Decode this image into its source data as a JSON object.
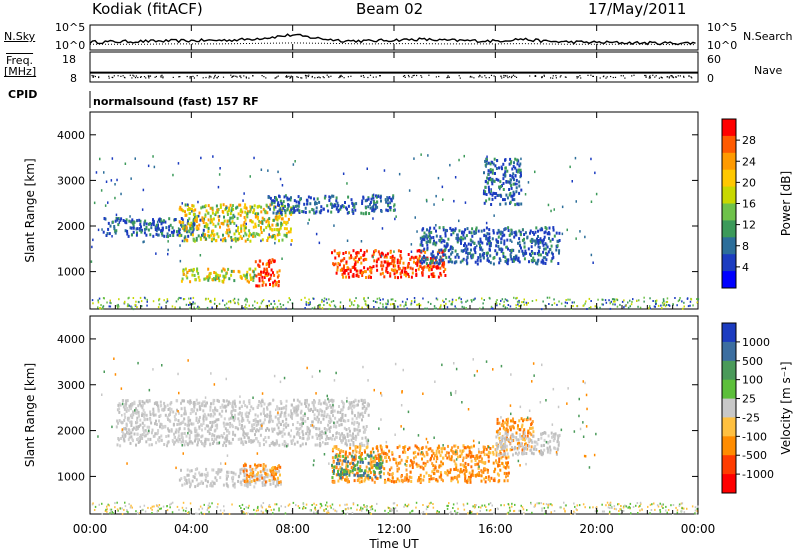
{
  "header": {
    "station": "Kodiak (fitACF)",
    "beam": "Beam 02",
    "date": "17/May/2011"
  },
  "side_labels": {
    "nsky": "N.Sky",
    "freq_line1": "Freq.",
    "freq_line2": "[MHz]",
    "cpid": "CPID",
    "nsearch": "N.Search",
    "nave": "Nave"
  },
  "mode_text": "normalsound (fast) 157 RF",
  "chart_data": [
    {
      "type": "line",
      "title": "",
      "left_ticks": [
        "10^5",
        "10^0"
      ],
      "right_ticks": [
        "10^5",
        "10^0"
      ],
      "series": [
        {
          "name": "N.Sky",
          "values": [
            1.3,
            1.4,
            1.5,
            1.6,
            1.7,
            1.8,
            2.0,
            2.6,
            3.4,
            2.4,
            1.7,
            1.6,
            1.9,
            2.1,
            1.8,
            1.7,
            1.6,
            2.2,
            1.5,
            1.3,
            1.2,
            1.1,
            1.0,
            1.0,
            1.0
          ]
        },
        {
          "name": "N.Search",
          "values": [
            1.1,
            1.1,
            1.1,
            1.2,
            1.2,
            1.2,
            1.3,
            1.4,
            1.5,
            1.4,
            1.3,
            1.2,
            1.3,
            1.3,
            1.2,
            1.2,
            1.2,
            1.3,
            1.2,
            1.1,
            1.1,
            1.1,
            1.1,
            1.0,
            1.0
          ]
        }
      ]
    },
    {
      "type": "scatter",
      "title": "",
      "left_ticks": [
        "18",
        "8"
      ],
      "right_ticks": [
        "60",
        "0"
      ],
      "series": [
        {
          "name": "Freq",
          "values": [
            11.0
          ]
        },
        {
          "name": "Nave",
          "values": [
            24
          ]
        }
      ]
    },
    {
      "type": "heatmap",
      "title": "",
      "ylabel": "Slant Range [km]",
      "ylim": [
        180,
        4500
      ],
      "y_ticks": [
        "1000",
        "2000",
        "3000",
        "4000"
      ],
      "colorbar_label": "Power [dB]",
      "colorbar_ticks": [
        "28",
        "24",
        "20",
        "16",
        "12",
        "8",
        "4"
      ],
      "colorbar_colors": [
        "#ff0000",
        "#ff5a00",
        "#ff9a00",
        "#ffc800",
        "#c8d800",
        "#6ec24a",
        "#3c9a5a",
        "#2c6e9a",
        "#1c3cc0",
        "#0000ff"
      ],
      "regions": [
        {
          "t": [
            0.5,
            4.5
          ],
          "r": [
            1800,
            2200
          ],
          "level": "low"
        },
        {
          "t": [
            3.5,
            8.0
          ],
          "r": [
            1700,
            2500
          ],
          "level": "mid"
        },
        {
          "t": [
            7.0,
            12.0
          ],
          "r": [
            2300,
            2700
          ],
          "level": "low"
        },
        {
          "t": [
            3.5,
            6.5
          ],
          "r": [
            800,
            1100
          ],
          "level": "mid"
        },
        {
          "t": [
            6.5,
            7.5
          ],
          "r": [
            700,
            1300
          ],
          "level": "high"
        },
        {
          "t": [
            9.5,
            14.0
          ],
          "r": [
            900,
            1500
          ],
          "level": "high"
        },
        {
          "t": [
            13.0,
            18.5
          ],
          "r": [
            1200,
            2000
          ],
          "level": "low"
        },
        {
          "t": [
            15.5,
            17.0
          ],
          "r": [
            2500,
            3500
          ],
          "level": "low"
        }
      ]
    },
    {
      "type": "heatmap",
      "title": "",
      "ylabel": "Slant Range [km]",
      "ylim": [
        180,
        4500
      ],
      "y_ticks": [
        "1000",
        "2000",
        "3000",
        "4000"
      ],
      "colorbar_label": "Velocity [m s⁻¹]",
      "colorbar_ticks": [
        "1000",
        "500",
        "100",
        "25",
        "-25",
        "-100",
        "-500",
        "-1000"
      ],
      "colorbar_colors": [
        "#1c3cc0",
        "#3c6ea0",
        "#4a9a5a",
        "#5cbf3a",
        "#c8c8c8",
        "#ffc040",
        "#ff8c00",
        "#ff3c00",
        "#ff0000"
      ],
      "regions": [
        {
          "t": [
            1.0,
            11.0
          ],
          "r": [
            1700,
            2700
          ],
          "level": "grey"
        },
        {
          "t": [
            3.5,
            7.5
          ],
          "r": [
            800,
            1200
          ],
          "level": "grey"
        },
        {
          "t": [
            6.0,
            7.5
          ],
          "r": [
            900,
            1300
          ],
          "level": "orange"
        },
        {
          "t": [
            9.5,
            16.5
          ],
          "r": [
            900,
            1700
          ],
          "level": "orange"
        },
        {
          "t": [
            9.5,
            11.5
          ],
          "r": [
            1000,
            1500
          ],
          "level": "green"
        },
        {
          "t": [
            16.0,
            17.5
          ],
          "r": [
            1600,
            2300
          ],
          "level": "orange"
        },
        {
          "t": [
            16.0,
            18.5
          ],
          "r": [
            1500,
            2000
          ],
          "level": "grey"
        }
      ]
    }
  ],
  "x_axis": {
    "ticks": [
      "00:00",
      "04:00",
      "08:00",
      "12:00",
      "16:00",
      "20:00",
      "00:00"
    ],
    "label": "Time UT"
  }
}
